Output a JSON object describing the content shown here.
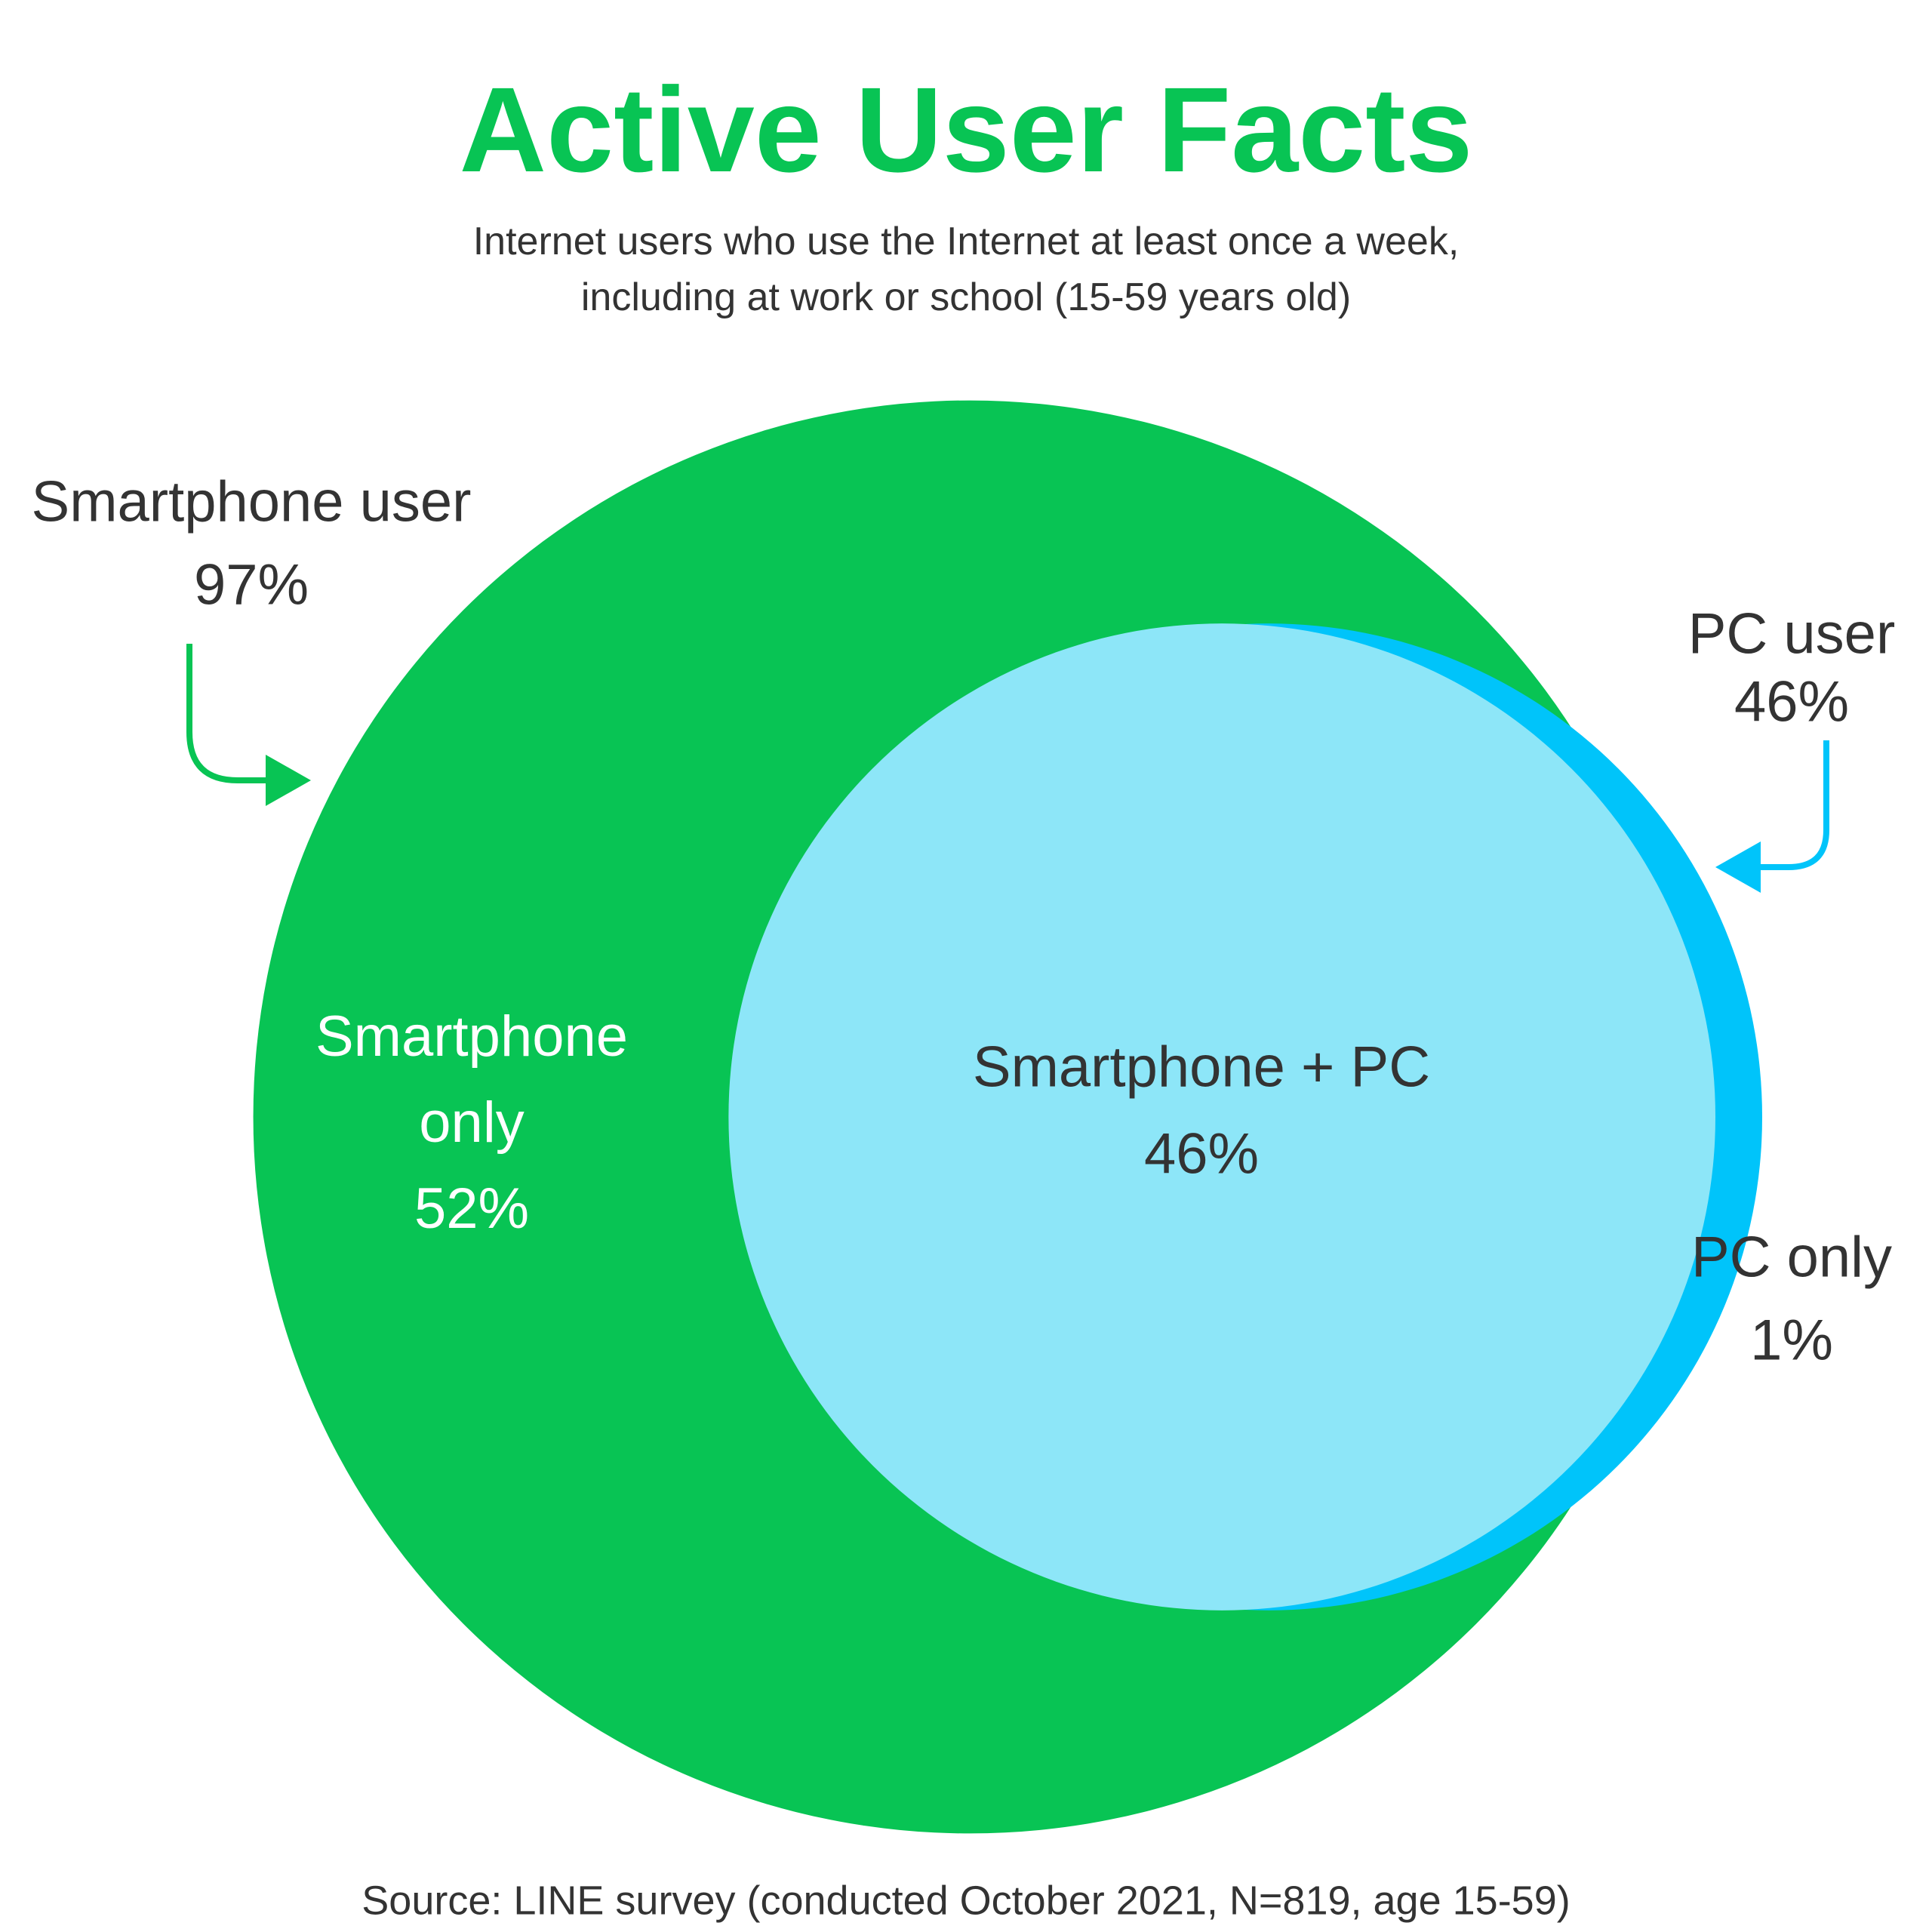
{
  "chart_data": {
    "type": "venn",
    "title": "Active User Facts",
    "subtitle": "Internet users who use the Internet at least once a week, including at work or school (15-59 years old)",
    "source": "Source: LINE survey (conducted October 2021, N=819, age 15-59)",
    "sets": {
      "labels": [
        "Smartphone user",
        "PC user"
      ],
      "values": [
        97,
        46
      ],
      "value_labels": [
        "97%",
        "46%"
      ],
      "colors": [
        "#08c454",
        "#00c4fa"
      ]
    },
    "regions": {
      "labels": [
        "Smartphone only",
        "Smartphone + PC",
        "PC only"
      ],
      "values": [
        52,
        46,
        1
      ],
      "value_labels": [
        "52%",
        "46%",
        "1%"
      ],
      "colors": [
        "#08c454",
        "#8de6f8",
        "#00c4fa"
      ]
    }
  }
}
